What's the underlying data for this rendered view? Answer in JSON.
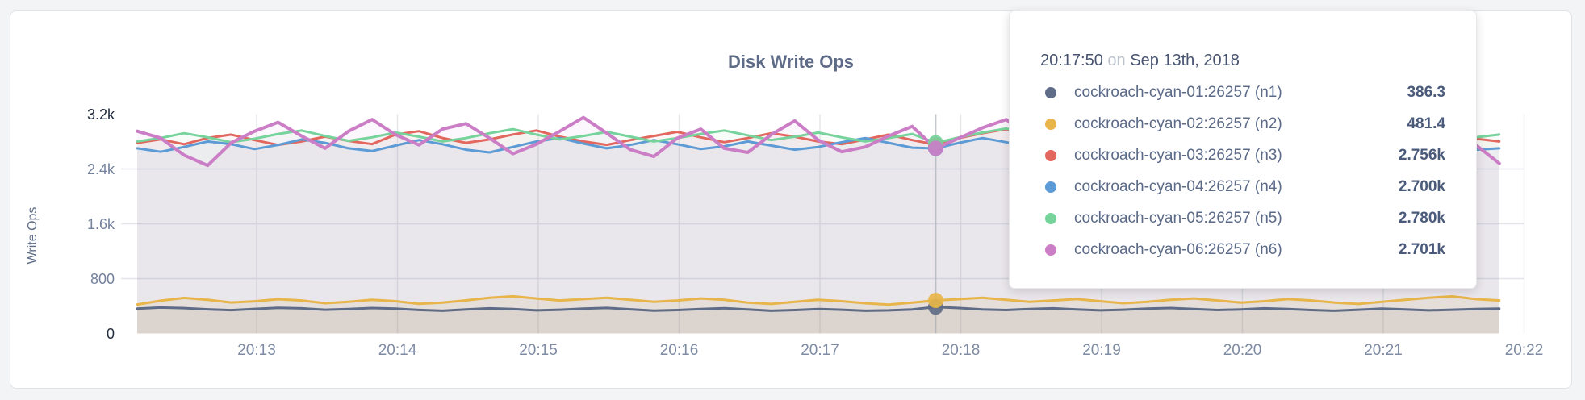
{
  "panel": {
    "title": "Disk Write Ops",
    "y_axis_label": "Write Ops"
  },
  "tooltip": {
    "time": "20:17:50",
    "preposition": "on",
    "date": "Sep 13th, 2018"
  },
  "chart_data": {
    "type": "line",
    "title": "Disk Write Ops",
    "xlabel": "",
    "ylabel": "Write Ops",
    "ylim": [
      0,
      3200
    ],
    "grid": true,
    "legend_position": "tooltip",
    "y_ticks": [
      "3.2k",
      "2.4k",
      "1.6k",
      "800",
      "0"
    ],
    "y_tick_values": [
      3200,
      2400,
      1600,
      800,
      0
    ],
    "x_ticks": [
      "20:13",
      "20:14",
      "20:15",
      "20:16",
      "20:17",
      "20:18",
      "20:19",
      "20:20",
      "20:21",
      "20:22"
    ],
    "x_start_time": "20:12:10",
    "x_interval_seconds": 10,
    "hover_index": 34,
    "hover_time": "20:17:50",
    "series": [
      {
        "name": "cockroach-cyan-01:26257 (n1)",
        "color": "#5f6c87",
        "fill": "rgba(95,108,135,0.10)",
        "hover_display": "386.3",
        "hover_value": 386.3,
        "values": [
          362,
          378,
          370,
          352,
          340,
          358,
          374,
          366,
          346,
          355,
          371,
          361,
          342,
          331,
          351,
          366,
          356,
          336,
          346,
          361,
          372,
          352,
          332,
          341,
          356,
          367,
          351,
          331,
          341,
          356,
          346,
          331,
          336,
          351,
          386.3,
          371,
          351,
          341,
          356,
          366,
          351,
          336,
          346,
          361,
          371,
          356,
          341,
          351,
          366,
          356,
          341,
          331,
          346,
          361,
          351,
          336,
          346,
          356,
          361
        ]
      },
      {
        "name": "cockroach-cyan-02:26257 (n2)",
        "color": "#e7b549",
        "fill": "rgba(231,181,73,0.14)",
        "hover_display": "481.4",
        "hover_value": 481.4,
        "values": [
          422,
          478,
          519,
          491,
          452,
          470,
          500,
          481,
          441,
          462,
          491,
          471,
          432,
          451,
          482,
          521,
          542,
          511,
          481,
          501,
          521,
          491,
          461,
          481,
          511,
          491,
          451,
          431,
          461,
          491,
          471,
          441,
          421,
          451,
          481.4,
          501,
          521,
          491,
          461,
          481,
          501,
          471,
          441,
          461,
          491,
          511,
          481,
          451,
          471,
          501,
          481,
          451,
          431,
          461,
          491,
          521,
          541,
          501,
          481
        ]
      },
      {
        "name": "cockroach-cyan-03:26257 (n3)",
        "color": "#e2685f",
        "fill": "rgba(226,104,95,0.06)",
        "hover_display": "2.756k",
        "hover_value": 2756,
        "values": [
          2781,
          2832,
          2761,
          2852,
          2901,
          2821,
          2751,
          2801,
          2872,
          2811,
          2762,
          2902,
          2951,
          2852,
          2781,
          2831,
          2902,
          2961,
          2871,
          2801,
          2752,
          2821,
          2881,
          2941,
          2861,
          2791,
          2851,
          2921,
          2871,
          2801,
          2761,
          2831,
          2901,
          2821,
          2756,
          2851,
          2921,
          2981,
          2881,
          2801,
          2851,
          2901,
          2831,
          2771,
          2821,
          2891,
          2951,
          2871,
          2801,
          2761,
          2831,
          2901,
          2861,
          2791,
          2751,
          2821,
          2881,
          2841,
          2801
        ]
      },
      {
        "name": "cockroach-cyan-04:26257 (n4)",
        "color": "#5c9bd5",
        "fill": "rgba(92,155,213,0.06)",
        "hover_display": "2.700k",
        "hover_value": 2700,
        "values": [
          2701,
          2651,
          2721,
          2801,
          2761,
          2691,
          2751,
          2831,
          2781,
          2701,
          2661,
          2741,
          2821,
          2761,
          2681,
          2641,
          2721,
          2801,
          2851,
          2771,
          2701,
          2751,
          2821,
          2761,
          2691,
          2731,
          2801,
          2741,
          2681,
          2721,
          2791,
          2851,
          2781,
          2711,
          2700,
          2781,
          2851,
          2791,
          2721,
          2681,
          2741,
          2811,
          2761,
          2701,
          2731,
          2801,
          2861,
          2781,
          2711,
          2671,
          2731,
          2801,
          2751,
          2691,
          2721,
          2781,
          2731,
          2681,
          2701
        ]
      },
      {
        "name": "cockroach-cyan-05:26257 (n5)",
        "color": "#76d39b",
        "fill": "rgba(118,211,155,0.06)",
        "hover_display": "2.780k",
        "hover_value": 2780,
        "values": [
          2801,
          2852,
          2921,
          2861,
          2791,
          2841,
          2911,
          2961,
          2881,
          2811,
          2861,
          2931,
          2871,
          2801,
          2851,
          2921,
          2981,
          2901,
          2831,
          2881,
          2941,
          2871,
          2801,
          2851,
          2911,
          2961,
          2891,
          2821,
          2871,
          2931,
          2861,
          2801,
          2851,
          2911,
          2780,
          2861,
          2931,
          2991,
          2911,
          2841,
          2891,
          2951,
          2881,
          2811,
          2861,
          2921,
          2971,
          2901,
          2831,
          2881,
          2941,
          2871,
          2811,
          2861,
          2921,
          2881,
          2821,
          2861,
          2901
        ]
      },
      {
        "name": "cockroach-cyan-06:26257 (n6)",
        "color": "#cb7ec6",
        "fill": "rgba(203,126,198,0.06)",
        "hover_display": "2.701k",
        "hover_value": 2701,
        "values": [
          2951,
          2851,
          2601,
          2451,
          2781,
          2951,
          3081,
          2881,
          2701,
          2951,
          3121,
          2901,
          2751,
          2981,
          3061,
          2851,
          2621,
          2761,
          2951,
          3151,
          2921,
          2681,
          2581,
          2851,
          2981,
          2701,
          2641,
          2901,
          3101,
          2821,
          2651,
          2721,
          2881,
          3021,
          2701,
          2851,
          3001,
          3121,
          2881,
          2681,
          2781,
          2951,
          2851,
          2701,
          2761,
          2901,
          3061,
          2871,
          2701,
          2621,
          2781,
          2951,
          2851,
          2681,
          2601,
          2821,
          2951,
          2751,
          2481
        ]
      }
    ]
  }
}
